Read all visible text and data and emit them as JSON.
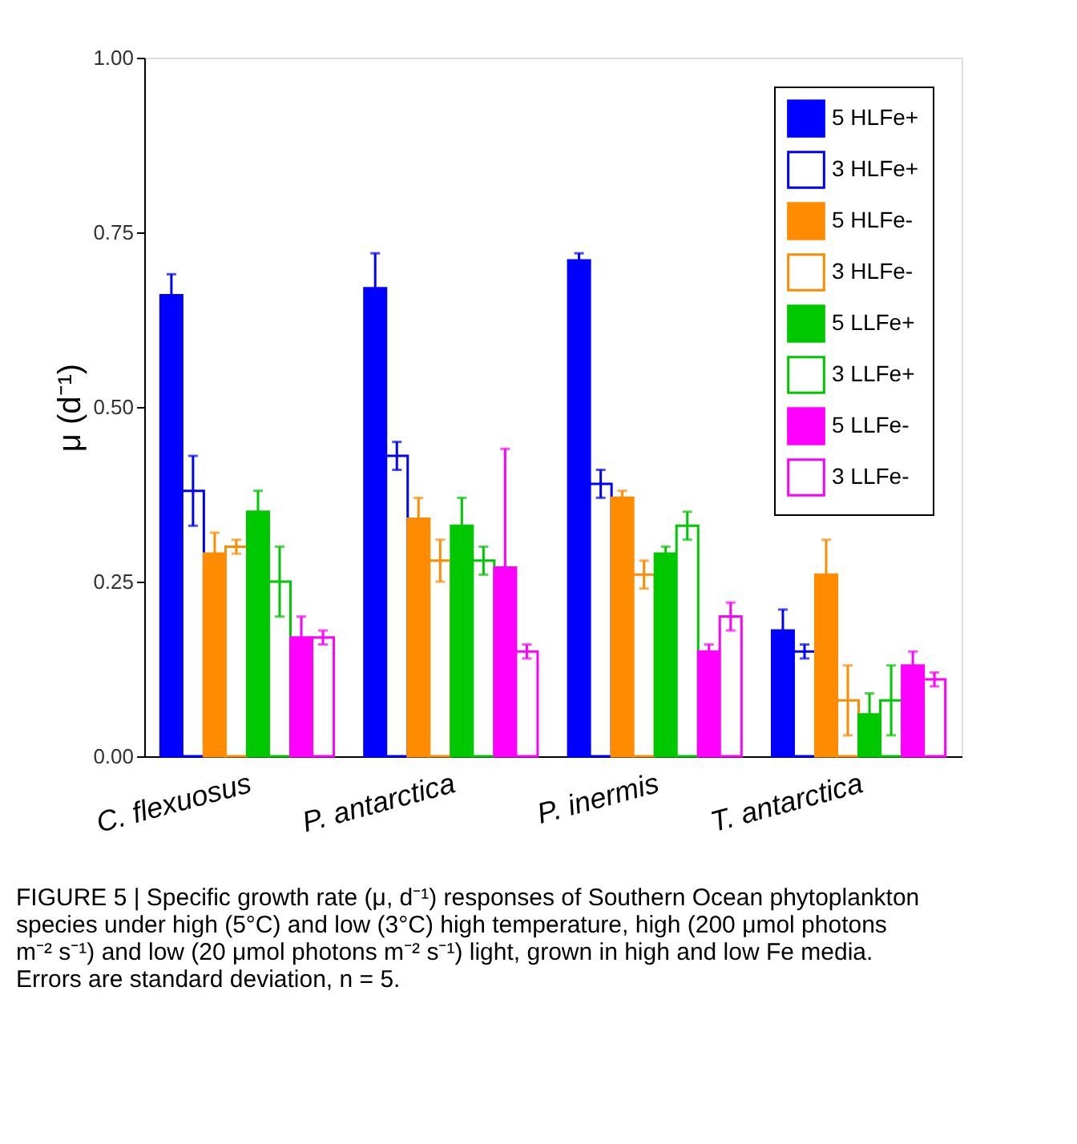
{
  "chart_data": {
    "type": "bar",
    "ylabel": "μ (d⁻¹)",
    "categories": [
      "C. flexuosus",
      "P. antarctica",
      "P. inermis",
      "T. antarctica"
    ],
    "series": [
      {
        "name": "5 HLFe+",
        "color": "#0000ff",
        "values": [
          0.66,
          0.67,
          0.71,
          0.18
        ],
        "errors": [
          0.03,
          0.05,
          0.01,
          0.03
        ]
      },
      {
        "name": "3 HLFe+",
        "color": "#0000ff",
        "values": [
          0.38,
          0.43,
          0.39,
          0.15
        ],
        "errors": [
          0.05,
          0.02,
          0.02,
          0.01
        ]
      },
      {
        "name": "5 HLFe-",
        "color": "#ff8c00",
        "values": [
          0.29,
          0.34,
          0.37,
          0.26
        ],
        "errors": [
          0.03,
          0.03,
          0.01,
          0.05
        ]
      },
      {
        "name": "3 HLFe-",
        "color": "#ff8c00",
        "values": [
          0.3,
          0.28,
          0.26,
          0.08
        ],
        "errors": [
          0.01,
          0.03,
          0.02,
          0.05
        ]
      },
      {
        "name": "5 LLFe+",
        "color": "#00c800",
        "values": [
          0.35,
          0.33,
          0.29,
          0.06
        ],
        "errors": [
          0.03,
          0.04,
          0.01,
          0.03
        ]
      },
      {
        "name": "3 LLFe+",
        "color": "#00c800",
        "values": [
          0.25,
          0.28,
          0.33,
          0.08
        ],
        "errors": [
          0.05,
          0.02,
          0.02,
          0.05
        ]
      },
      {
        "name": "5 LLFe-",
        "color": "#ff00ff",
        "values": [
          0.17,
          0.27,
          0.15,
          0.13
        ],
        "errors": [
          0.03,
          0.17,
          0.01,
          0.02
        ]
      },
      {
        "name": "3 LLFe-",
        "color": "#ff00ff",
        "values": [
          0.17,
          0.15,
          0.2,
          0.11
        ],
        "errors": [
          0.01,
          0.01,
          0.02,
          0.01
        ]
      }
    ],
    "ylim": [
      0,
      1
    ],
    "yticks": [
      {
        "value": 0,
        "label": "0.00"
      },
      {
        "value": 0.25,
        "label": "0.25"
      },
      {
        "value": 0.5,
        "label": "0.50"
      },
      {
        "value": 0.75,
        "label": "0.75"
      },
      {
        "value": 1,
        "label": "1.00"
      }
    ],
    "grid": false,
    "legend": "top right",
    "annotations": [
      "FIGURE 5 | Specific growth rate (μ, d⁻¹) responses of Southern Ocean phytoplankton species under high (5°C) and low (3°C) high temperature, high (200 μmol photons m⁻² s⁻¹) and low (20 μmol photons m⁻² s⁻¹) light, grown in high and low Fe media. Errors are standard deviation, n = 5."
    ]
  }
}
